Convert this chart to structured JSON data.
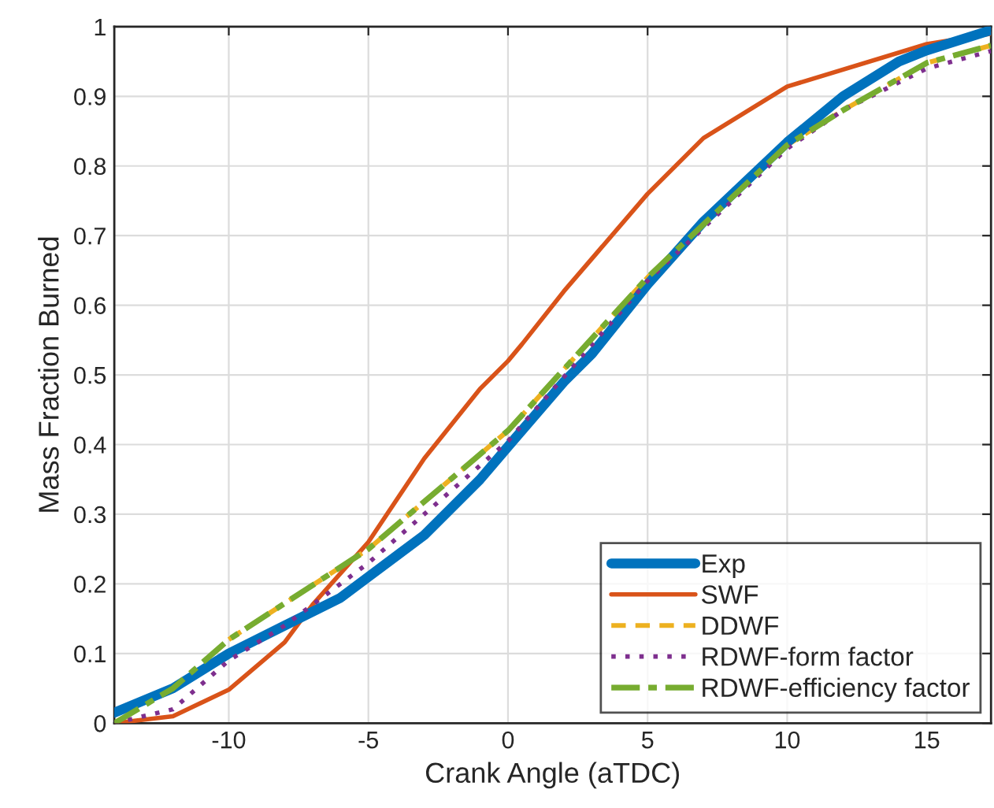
{
  "chart_data": {
    "type": "line",
    "xlabel": "Crank Angle (aTDC)",
    "ylabel": "Mass Fraction Burned",
    "xlim": [
      -14.1,
      17.3
    ],
    "ylim": [
      0,
      1
    ],
    "xticks": [
      -10,
      -5,
      0,
      5,
      10,
      15
    ],
    "yticks": [
      0,
      0.1,
      0.2,
      0.3,
      0.4,
      0.5,
      0.6,
      0.7,
      0.8,
      0.9,
      1
    ],
    "grid": true,
    "legend": "bottom right",
    "series": [
      {
        "name": "Exp",
        "color": "#0072bd",
        "line_style": "solid",
        "x": [
          -14.1,
          -12,
          -10,
          -8,
          -6,
          -5,
          -3,
          -1,
          0,
          2,
          3,
          5,
          7,
          10,
          12,
          14,
          15,
          17.3
        ],
        "values": [
          0.015,
          0.05,
          0.1,
          0.14,
          0.18,
          0.21,
          0.27,
          0.35,
          0.397,
          0.49,
          0.53,
          0.63,
          0.72,
          0.834,
          0.9,
          0.95,
          0.966,
          0.995
        ]
      },
      {
        "name": "SWF",
        "color": "#d95319",
        "line_style": "solid",
        "x": [
          -14.1,
          -12,
          -10,
          -8,
          -7,
          -5,
          -3,
          -1,
          0,
          0.5,
          2,
          5,
          7,
          10,
          15,
          17.3
        ],
        "values": [
          0,
          0.01,
          0.048,
          0.116,
          0.17,
          0.26,
          0.38,
          0.48,
          0.52,
          0.544,
          0.62,
          0.76,
          0.84,
          0.914,
          0.975,
          0.99
        ]
      },
      {
        "name": "DDWF",
        "color": "#edb120",
        "line_style": "dashed",
        "x": [
          -10,
          -5,
          0,
          5,
          10,
          12,
          15,
          17.3
        ],
        "values": [
          0.12,
          0.25,
          0.42,
          0.64,
          0.83,
          0.88,
          0.948,
          0.973
        ]
      },
      {
        "name": "RDWF-form factor",
        "color": "#7e2f8e",
        "line_style": "dotted",
        "x": [
          -14.1,
          -12,
          -10,
          -8,
          -5,
          0,
          5,
          10,
          12,
          15,
          17.3
        ],
        "values": [
          0,
          0.02,
          0.09,
          0.14,
          0.23,
          0.405,
          0.635,
          0.825,
          0.88,
          0.94,
          0.965
        ]
      },
      {
        "name": "RDWF-efficiency factor",
        "color": "#77ac30",
        "line_style": "dashdot",
        "x": [
          -14.1,
          -12,
          -10,
          -5,
          0,
          5,
          10,
          12,
          15,
          17.3
        ],
        "values": [
          0,
          0.05,
          0.12,
          0.25,
          0.42,
          0.64,
          0.83,
          0.88,
          0.948,
          0.973
        ]
      }
    ]
  }
}
